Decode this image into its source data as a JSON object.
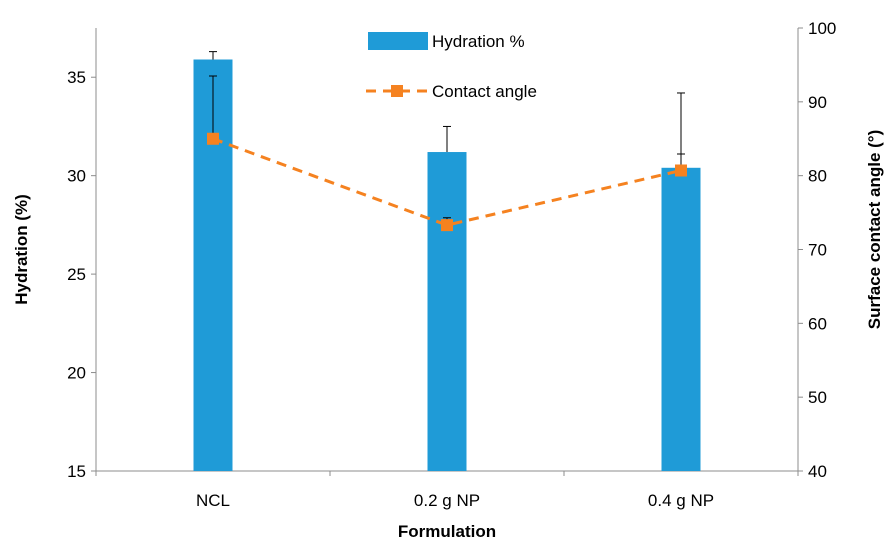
{
  "chart_data": {
    "type": "bar",
    "categories": [
      "NCL",
      "0.2 g NP",
      "0.4 g NP"
    ],
    "xlabel": "Formulation",
    "ylabel": "Hydration (%)",
    "y2label": "Surface contact angle (°)",
    "ylim": [
      15,
      37.5
    ],
    "y2lim": [
      40,
      100
    ],
    "yticks": [
      15,
      20,
      25,
      30,
      35
    ],
    "y2ticks": [
      40,
      50,
      60,
      70,
      80,
      90,
      100
    ],
    "grid": false,
    "legend_position": "top-center",
    "series": [
      {
        "name": "Hydration %",
        "type": "bar",
        "axis": "left",
        "values": [
          35.9,
          31.2,
          30.4
        ],
        "error": [
          0.4,
          1.3,
          0.7
        ],
        "color": "#1f9bd7"
      },
      {
        "name": "Contact angle",
        "type": "line",
        "style": "dashed",
        "marker": "square",
        "axis": "right",
        "values": [
          85.0,
          73.3,
          80.7
        ],
        "error": [
          8.5,
          1.0,
          10.5
        ],
        "color": "#f58220"
      }
    ]
  }
}
